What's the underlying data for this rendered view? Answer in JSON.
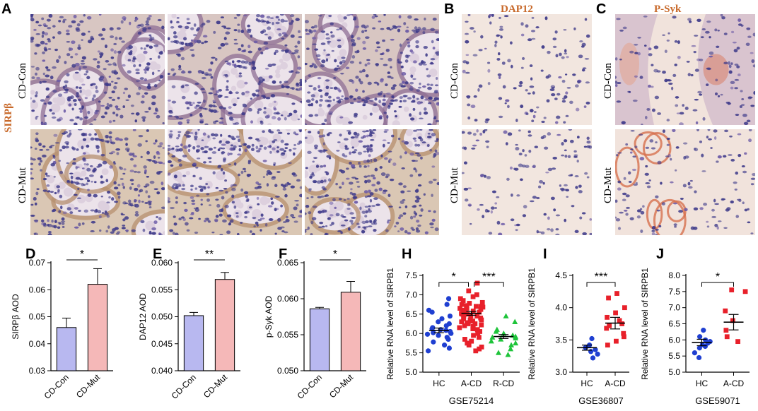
{
  "panels": {
    "A": {
      "letter": "A",
      "stain": "SIRPβ",
      "rows": [
        "CD-Con",
        "CD-Mut"
      ]
    },
    "B": {
      "letter": "B",
      "stain": "DAP12",
      "rows": [
        "CD-Con",
        "CD-Mut"
      ]
    },
    "C": {
      "letter": "C",
      "stain": "P-Syk",
      "rows": [
        "CD-Con",
        "CD-Mut"
      ]
    }
  },
  "colors": {
    "blue_bar": "#b8b8f0",
    "red_bar": "#f5b8b8",
    "hc_blue": "#1f3fd1",
    "acd_red": "#e8202a",
    "rcd_green": "#1ec43a",
    "stain_label": "#c8692a"
  },
  "chart_data": [
    {
      "letter": "D",
      "type": "bar",
      "categories": [
        "CD-Con",
        "CD-Mut"
      ],
      "values": [
        0.046,
        0.062
      ],
      "errors": [
        0.0035,
        0.0058
      ],
      "ylabel": "SIRPβ AOD",
      "ylim": [
        0.03,
        0.07
      ],
      "yticks": [
        "0.03",
        "0.04",
        "0.05",
        "0.06",
        "0.07"
      ],
      "sig": "*"
    },
    {
      "letter": "E",
      "type": "bar",
      "categories": [
        "CD-Con",
        "CD-Mut"
      ],
      "values": [
        0.0502,
        0.0569
      ],
      "errors": [
        0.0006,
        0.0013
      ],
      "ylabel": "DAP12 AOD",
      "ylim": [
        0.04,
        0.06
      ],
      "yticks": [
        "0.040",
        "0.045",
        "0.050",
        "0.055",
        "0.060"
      ],
      "sig": "**"
    },
    {
      "letter": "F",
      "type": "bar",
      "categories": [
        "CD-Con",
        "CD-Mut"
      ],
      "values": [
        0.0586,
        0.0609
      ],
      "errors": [
        0.0002,
        0.0015
      ],
      "ylabel": "p-Syk AOD",
      "ylim": [
        0.05,
        0.065
      ],
      "yticks": [
        "0.050",
        "0.055",
        "0.060",
        "0.065"
      ],
      "sig": "*"
    },
    {
      "letter": "H",
      "type": "scatter",
      "categories": [
        "HC",
        "A-CD",
        "R-CD"
      ],
      "dataset": "GSE75214",
      "ylabel": "Relative RNA level of SIRPB1",
      "ylim": [
        5.0,
        7.5
      ],
      "yticks": [
        "5.0",
        "5.5",
        "6.0",
        "6.5",
        "7.0",
        "7.5"
      ],
      "means": [
        6.08,
        6.52,
        5.92
      ],
      "sems": [
        0.06,
        0.05,
        0.05
      ],
      "series": [
        {
          "values": [
            6.9,
            6.75,
            6.55,
            6.45,
            6.38,
            6.3,
            6.25,
            6.2,
            6.15,
            6.12,
            6.08,
            6.05,
            6.02,
            6.0,
            5.98,
            5.95,
            5.9,
            5.85,
            5.78,
            5.7,
            5.62,
            5.55,
            6.6,
            6.1
          ]
        },
        {
          "values": [
            7.3,
            7.1,
            7.0,
            6.95,
            6.9,
            6.85,
            6.8,
            6.78,
            6.75,
            6.72,
            6.7,
            6.68,
            6.65,
            6.62,
            6.6,
            6.58,
            6.55,
            6.52,
            6.5,
            6.5,
            6.48,
            6.45,
            6.42,
            6.4,
            6.38,
            6.35,
            6.32,
            6.3,
            6.28,
            6.25,
            6.22,
            6.2,
            6.18,
            6.15,
            6.12,
            6.1,
            6.05,
            6.0,
            5.95,
            5.9,
            5.85,
            5.8,
            5.75,
            5.7,
            5.65,
            5.6,
            5.55,
            6.6,
            6.7,
            6.45,
            6.35,
            6.25,
            6.55,
            6.65
          ]
        },
        {
          "values": [
            6.45,
            6.3,
            6.1,
            6.05,
            6.0,
            5.95,
            5.92,
            5.9,
            5.88,
            5.85,
            5.8,
            5.75,
            5.7,
            5.6,
            5.5,
            5.45
          ]
        }
      ],
      "sig": [
        "*",
        "***"
      ]
    },
    {
      "letter": "I",
      "type": "scatter",
      "categories": [
        "HC",
        "A-CD"
      ],
      "dataset": "GSE36807",
      "ylabel": "Relative RNA level of SIRPB1",
      "ylim": [
        3.0,
        4.5
      ],
      "yticks": [
        "3.0",
        "3.5",
        "4.0",
        "4.5"
      ],
      "means": [
        3.38,
        3.76
      ],
      "sems": [
        0.04,
        0.09
      ],
      "series": [
        {
          "values": [
            3.52,
            3.42,
            3.38,
            3.35,
            3.32,
            3.28,
            3.22
          ]
        },
        {
          "values": [
            4.22,
            4.15,
            4.0,
            3.92,
            3.85,
            3.8,
            3.75,
            3.72,
            3.68,
            3.6,
            3.55,
            3.48,
            3.42
          ]
        }
      ],
      "sig": [
        "***"
      ]
    },
    {
      "letter": "J",
      "type": "scatter",
      "categories": [
        "HC",
        "A-CD"
      ],
      "dataset": "GSE59071",
      "ylabel": "Relative RNA level of SIRPB1",
      "ylim": [
        5.0,
        8.0
      ],
      "yticks": [
        "5.0",
        "5.5",
        "6.0",
        "6.5",
        "7.0",
        "7.5",
        "8.0"
      ],
      "means": [
        5.92,
        6.55
      ],
      "sems": [
        0.1,
        0.24
      ],
      "series": [
        {
          "values": [
            6.3,
            6.1,
            6.0,
            5.95,
            5.9,
            5.85,
            5.8,
            5.75,
            5.6,
            5.45
          ]
        },
        {
          "values": [
            7.55,
            7.5,
            6.9,
            6.6,
            6.3,
            6.1,
            5.95
          ]
        }
      ],
      "sig": [
        "*"
      ]
    }
  ]
}
